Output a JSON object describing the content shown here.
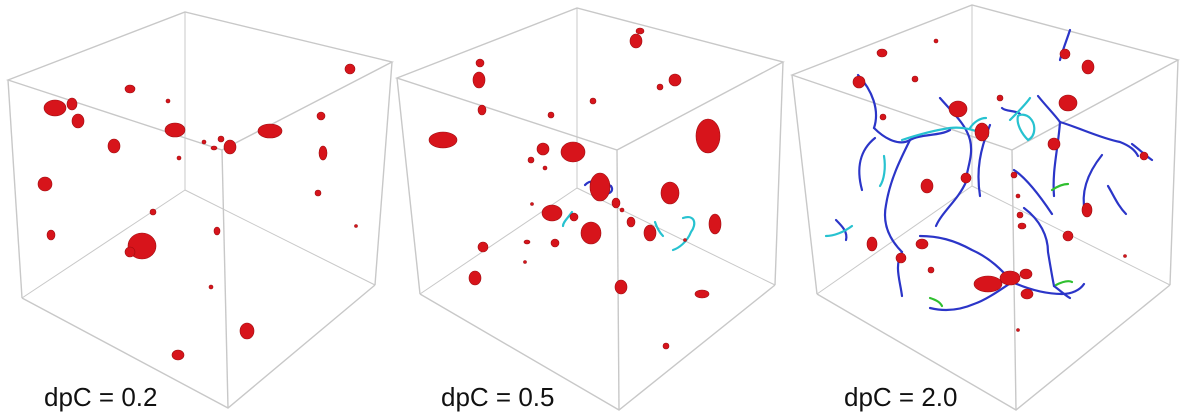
{
  "colors": {
    "cube_edge": "#c8c8c8",
    "cluster": "#d7141b",
    "cluster_dark": "#9e0c10",
    "filament_blue": "#2b35c8",
    "filament_cyan": "#27c2d0",
    "filament_green": "#2fbf2f"
  },
  "panels": [
    {
      "caption": "dpC = 0.2"
    },
    {
      "caption": "dpC = 0.5"
    },
    {
      "caption": "dpC = 2.0"
    }
  ]
}
